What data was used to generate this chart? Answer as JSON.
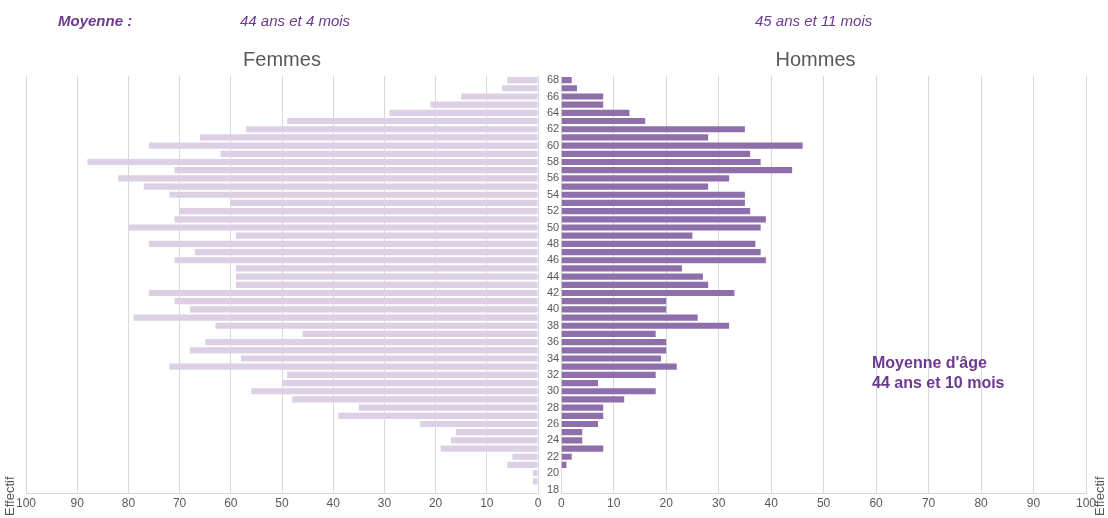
{
  "chart_data": [
    {
      "type": "bar",
      "orientation": "horizontal",
      "title": "Femmes",
      "ylabel": "Effectif",
      "annotations": [
        "Moyenne :",
        "44 ans et 4 mois"
      ],
      "categories": [
        "68",
        null,
        "66",
        null,
        "64",
        null,
        "62",
        null,
        "60",
        null,
        "58",
        null,
        "56",
        null,
        "54",
        null,
        "52",
        null,
        "50",
        null,
        "48",
        null,
        "46",
        null,
        "44",
        null,
        "42",
        null,
        "40",
        null,
        "38",
        null,
        "36",
        null,
        "34",
        null,
        "32",
        null,
        "30",
        null,
        "28",
        null,
        "26",
        null,
        "24",
        null,
        "22",
        null,
        "20",
        null,
        "18"
      ],
      "values": [
        6,
        7,
        15,
        21,
        29,
        49,
        57,
        66,
        76,
        62,
        88,
        71,
        82,
        77,
        72,
        60,
        70,
        71,
        80,
        59,
        76,
        67,
        71,
        59,
        59,
        59,
        76,
        71,
        68,
        79,
        63,
        46,
        65,
        68,
        58,
        72,
        49,
        50,
        56,
        48,
        35,
        39,
        23,
        16,
        17,
        19,
        5,
        6,
        1,
        1,
        0
      ],
      "color": "#dcd0e4",
      "xlim": [
        100,
        0
      ],
      "xticks": [
        100,
        90,
        80,
        70,
        60,
        50,
        40,
        30,
        20,
        10,
        0
      ],
      "grid": "x",
      "tick_labels": "x",
      "legend": false
    },
    {
      "type": "bar",
      "orientation": "horizontal",
      "title": "Hommes",
      "y2label": "Effectif",
      "annotations": [
        "45 ans et 11 mois",
        "Moyenne d'âge",
        "44 ans et 10 mois"
      ],
      "categories": [
        "68",
        null,
        "66",
        null,
        "64",
        null,
        "62",
        null,
        "60",
        null,
        "58",
        null,
        "56",
        null,
        "54",
        null,
        "52",
        null,
        "50",
        null,
        "48",
        null,
        "46",
        null,
        "44",
        null,
        "42",
        null,
        "40",
        null,
        "38",
        null,
        "36",
        null,
        "34",
        null,
        "32",
        null,
        "30",
        null,
        "28",
        null,
        "26",
        null,
        "24",
        null,
        "22",
        null,
        "20",
        null,
        "18"
      ],
      "values": [
        2,
        3,
        8,
        8,
        13,
        16,
        35,
        28,
        46,
        36,
        38,
        44,
        32,
        28,
        35,
        35,
        36,
        39,
        38,
        25,
        37,
        38,
        39,
        23,
        27,
        28,
        33,
        20,
        20,
        26,
        32,
        18,
        20,
        20,
        19,
        22,
        18,
        7,
        18,
        12,
        8,
        8,
        7,
        4,
        4,
        8,
        2,
        1,
        0,
        0,
        0
      ],
      "color": "#8e6fab",
      "xlim": [
        0,
        100
      ],
      "xticks": [
        0,
        10,
        20,
        30,
        40,
        50,
        60,
        70,
        80,
        90,
        100
      ],
      "grid": "x",
      "legend": false
    }
  ]
}
